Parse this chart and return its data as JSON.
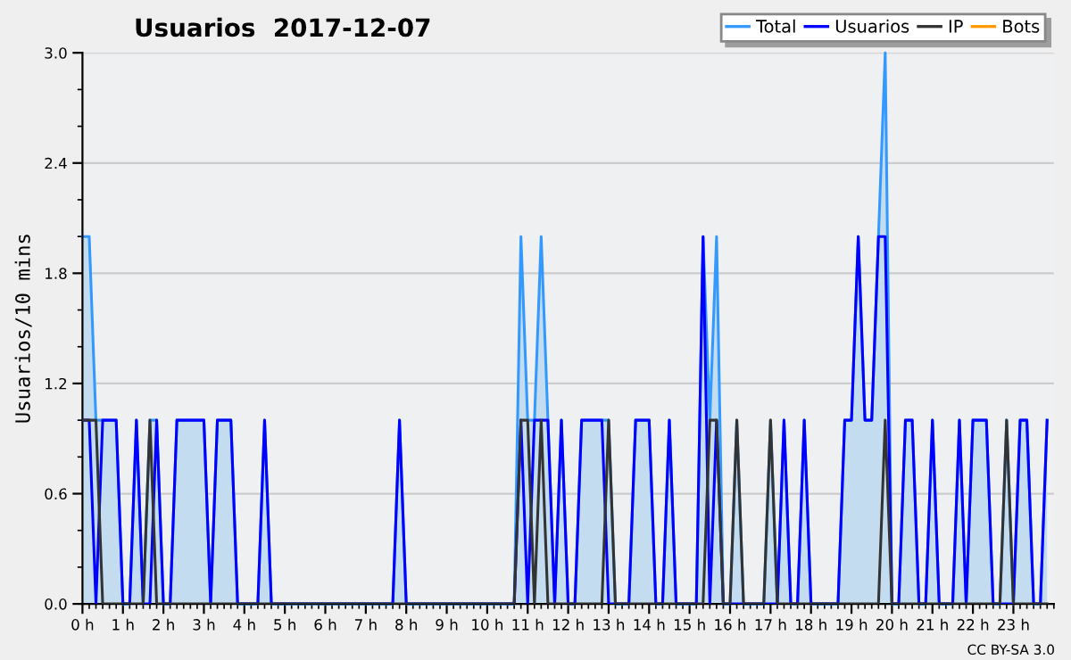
{
  "chart_data": {
    "type": "line",
    "title": "Usuarios  2017-12-07",
    "ylabel": "Usuarios/10 mins",
    "annotations": [
      "CC BY-SA 3.0"
    ],
    "x": [
      0,
      0.167,
      0.333,
      0.5,
      0.667,
      0.833,
      1,
      1.167,
      1.333,
      1.5,
      1.667,
      1.833,
      2,
      2.167,
      2.333,
      2.5,
      2.667,
      2.833,
      3,
      3.167,
      3.333,
      3.5,
      3.667,
      3.833,
      4,
      4.167,
      4.333,
      4.5,
      4.667,
      4.833,
      5,
      5.167,
      5.333,
      5.5,
      5.667,
      5.833,
      6,
      6.167,
      6.333,
      6.5,
      6.667,
      6.833,
      7,
      7.167,
      7.333,
      7.5,
      7.667,
      7.833,
      8,
      8.167,
      8.333,
      8.5,
      8.667,
      8.833,
      9,
      9.167,
      9.333,
      9.5,
      9.667,
      9.833,
      10,
      10.167,
      10.333,
      10.5,
      10.667,
      10.833,
      11,
      11.167,
      11.333,
      11.5,
      11.667,
      11.833,
      12,
      12.167,
      12.333,
      12.5,
      12.667,
      12.833,
      13,
      13.167,
      13.333,
      13.5,
      13.667,
      13.833,
      14,
      14.167,
      14.333,
      14.5,
      14.667,
      14.833,
      15,
      15.167,
      15.333,
      15.5,
      15.667,
      15.833,
      16,
      16.167,
      16.333,
      16.5,
      16.667,
      16.833,
      17,
      17.167,
      17.333,
      17.5,
      17.667,
      17.833,
      18,
      18.167,
      18.333,
      18.5,
      18.667,
      18.833,
      19,
      19.167,
      19.333,
      19.5,
      19.667,
      19.833,
      20,
      20.167,
      20.333,
      20.5,
      20.667,
      20.833,
      21,
      21.167,
      21.333,
      21.5,
      21.667,
      21.833,
      22,
      22.167,
      22.333,
      22.5,
      22.667,
      22.833,
      23,
      23.167,
      23.333,
      23.5,
      23.667,
      23.833
    ],
    "series": [
      {
        "name": "Total",
        "type": "area",
        "color": "#3399ff",
        "values": [
          2,
          2,
          1,
          1,
          1,
          1,
          0,
          0,
          1,
          0,
          1,
          1,
          0,
          0,
          1,
          1,
          1,
          1,
          1,
          0,
          1,
          1,
          1,
          0,
          0,
          0,
          0,
          1,
          0,
          0,
          0,
          0,
          0,
          0,
          0,
          0,
          0,
          0,
          0,
          0,
          0,
          0,
          0,
          0,
          0,
          0,
          0,
          1,
          0,
          0,
          0,
          0,
          0,
          0,
          0,
          0,
          0,
          0,
          0,
          0,
          0,
          0,
          0,
          0,
          0,
          2,
          1,
          1,
          2,
          1,
          0,
          1,
          0,
          0,
          1,
          1,
          1,
          1,
          1,
          0,
          0,
          0,
          1,
          1,
          1,
          0,
          0,
          1,
          0,
          0,
          0,
          0,
          2,
          1,
          2,
          0,
          0,
          1,
          0,
          0,
          0,
          0,
          1,
          0,
          1,
          0,
          0,
          1,
          0,
          0,
          0,
          0,
          0,
          1,
          1,
          2,
          1,
          1,
          2,
          3,
          0,
          0,
          1,
          1,
          0,
          0,
          1,
          0,
          0,
          0,
          1,
          0,
          1,
          1,
          1,
          0,
          0,
          1,
          0,
          1,
          1,
          0,
          0,
          1
        ]
      },
      {
        "name": "Usuarios",
        "color": "#0000ff",
        "values": [
          1,
          1,
          0,
          1,
          1,
          1,
          0,
          0,
          1,
          0,
          0,
          1,
          0,
          0,
          1,
          1,
          1,
          1,
          1,
          0,
          1,
          1,
          1,
          0,
          0,
          0,
          0,
          1,
          0,
          0,
          0,
          0,
          0,
          0,
          0,
          0,
          0,
          0,
          0,
          0,
          0,
          0,
          0,
          0,
          0,
          0,
          0,
          1,
          0,
          0,
          0,
          0,
          0,
          0,
          0,
          0,
          0,
          0,
          0,
          0,
          0,
          0,
          0,
          0,
          0,
          1,
          0,
          1,
          1,
          1,
          0,
          1,
          0,
          0,
          1,
          1,
          1,
          1,
          0,
          0,
          0,
          0,
          1,
          1,
          1,
          0,
          0,
          1,
          0,
          0,
          0,
          0,
          2,
          0,
          1,
          0,
          0,
          0,
          0,
          0,
          0,
          0,
          0,
          0,
          1,
          0,
          0,
          1,
          0,
          0,
          0,
          0,
          0,
          1,
          1,
          2,
          1,
          1,
          2,
          2,
          0,
          0,
          1,
          1,
          0,
          0,
          1,
          0,
          0,
          0,
          1,
          0,
          1,
          1,
          1,
          0,
          0,
          0,
          0,
          1,
          1,
          0,
          0,
          1
        ]
      },
      {
        "name": "IP",
        "color": "#333333",
        "values": [
          1,
          1,
          1,
          0,
          0,
          0,
          0,
          0,
          0,
          0,
          1,
          0,
          0,
          0,
          0,
          0,
          0,
          0,
          0,
          0,
          0,
          0,
          0,
          0,
          0,
          0,
          0,
          0,
          0,
          0,
          0,
          0,
          0,
          0,
          0,
          0,
          0,
          0,
          0,
          0,
          0,
          0,
          0,
          0,
          0,
          0,
          0,
          0,
          0,
          0,
          0,
          0,
          0,
          0,
          0,
          0,
          0,
          0,
          0,
          0,
          0,
          0,
          0,
          0,
          0,
          1,
          1,
          0,
          1,
          0,
          0,
          0,
          0,
          0,
          0,
          0,
          0,
          0,
          1,
          0,
          0,
          0,
          0,
          0,
          0,
          0,
          0,
          0,
          0,
          0,
          0,
          0,
          0,
          1,
          1,
          0,
          0,
          1,
          0,
          0,
          0,
          0,
          1,
          0,
          0,
          0,
          0,
          0,
          0,
          0,
          0,
          0,
          0,
          0,
          0,
          0,
          0,
          0,
          0,
          1,
          0,
          0,
          0,
          0,
          0,
          0,
          0,
          0,
          0,
          0,
          0,
          0,
          0,
          0,
          0,
          0,
          0,
          1,
          0,
          0,
          0,
          0,
          0,
          0
        ]
      },
      {
        "name": "Bots",
        "color": "#ff9900",
        "values": [
          null,
          null,
          null,
          null,
          null,
          null,
          null,
          null,
          null,
          null,
          null,
          null,
          null,
          null,
          null,
          null,
          null,
          null,
          null,
          null,
          null,
          null,
          null,
          null,
          null,
          null,
          null,
          null,
          null,
          null,
          null,
          null,
          null,
          null,
          null,
          null,
          null,
          null,
          null,
          null,
          null,
          null,
          null,
          null,
          null,
          null,
          null,
          null,
          null,
          null,
          null,
          null,
          null,
          null,
          null,
          null,
          null,
          null,
          null,
          null,
          null,
          null,
          null,
          null,
          null,
          null,
          null,
          null,
          null,
          null,
          null,
          null,
          null,
          null,
          null,
          null,
          null,
          null,
          null,
          null,
          null,
          null,
          null,
          null,
          null,
          null,
          null,
          null,
          null,
          null,
          null,
          null,
          null,
          null,
          null,
          null,
          null,
          null,
          null,
          null,
          null,
          null,
          null,
          null,
          null,
          null,
          null,
          null,
          null,
          null,
          null,
          null,
          null,
          null,
          null,
          null,
          null,
          null,
          null,
          null,
          null,
          null,
          null,
          null,
          null,
          null,
          null,
          null,
          null,
          null,
          null,
          null,
          null,
          null,
          null,
          null,
          null,
          null,
          null,
          null,
          null,
          null,
          null,
          null
        ]
      }
    ],
    "xlim": [
      0,
      24
    ],
    "xticks": [
      {
        "value": 0,
        "label": "0 h"
      },
      {
        "value": 1,
        "label": "1 h"
      },
      {
        "value": 2,
        "label": "2 h"
      },
      {
        "value": 3,
        "label": "3 h"
      },
      {
        "value": 4,
        "label": "4 h"
      },
      {
        "value": 5,
        "label": "5 h"
      },
      {
        "value": 6,
        "label": "6 h"
      },
      {
        "value": 7,
        "label": "7 h"
      },
      {
        "value": 8,
        "label": "8 h"
      },
      {
        "value": 9,
        "label": "9 h"
      },
      {
        "value": 10,
        "label": "10 h"
      },
      {
        "value": 11,
        "label": "11 h"
      },
      {
        "value": 12,
        "label": "12 h"
      },
      {
        "value": 13,
        "label": "13 h"
      },
      {
        "value": 14,
        "label": "14 h"
      },
      {
        "value": 15,
        "label": "15 h"
      },
      {
        "value": 16,
        "label": "16 h"
      },
      {
        "value": 17,
        "label": "17 h"
      },
      {
        "value": 18,
        "label": "18 h"
      },
      {
        "value": 19,
        "label": "19 h"
      },
      {
        "value": 20,
        "label": "20 h"
      },
      {
        "value": 21,
        "label": "21 h"
      },
      {
        "value": 22,
        "label": "22 h"
      },
      {
        "value": 23,
        "label": "23 h"
      }
    ],
    "ylim": [
      0,
      3
    ],
    "yticks": [
      {
        "value": 0,
        "label": "0.0"
      },
      {
        "value": 0.6,
        "label": "0.6"
      },
      {
        "value": 1.2,
        "label": "1.2"
      },
      {
        "value": 1.8,
        "label": "1.8"
      },
      {
        "value": 2.4,
        "label": "2.4"
      },
      {
        "value": 3,
        "label": "3.0"
      }
    ],
    "grid": "y",
    "legend": "top right",
    "marker": "none",
    "line_style": "solid"
  }
}
